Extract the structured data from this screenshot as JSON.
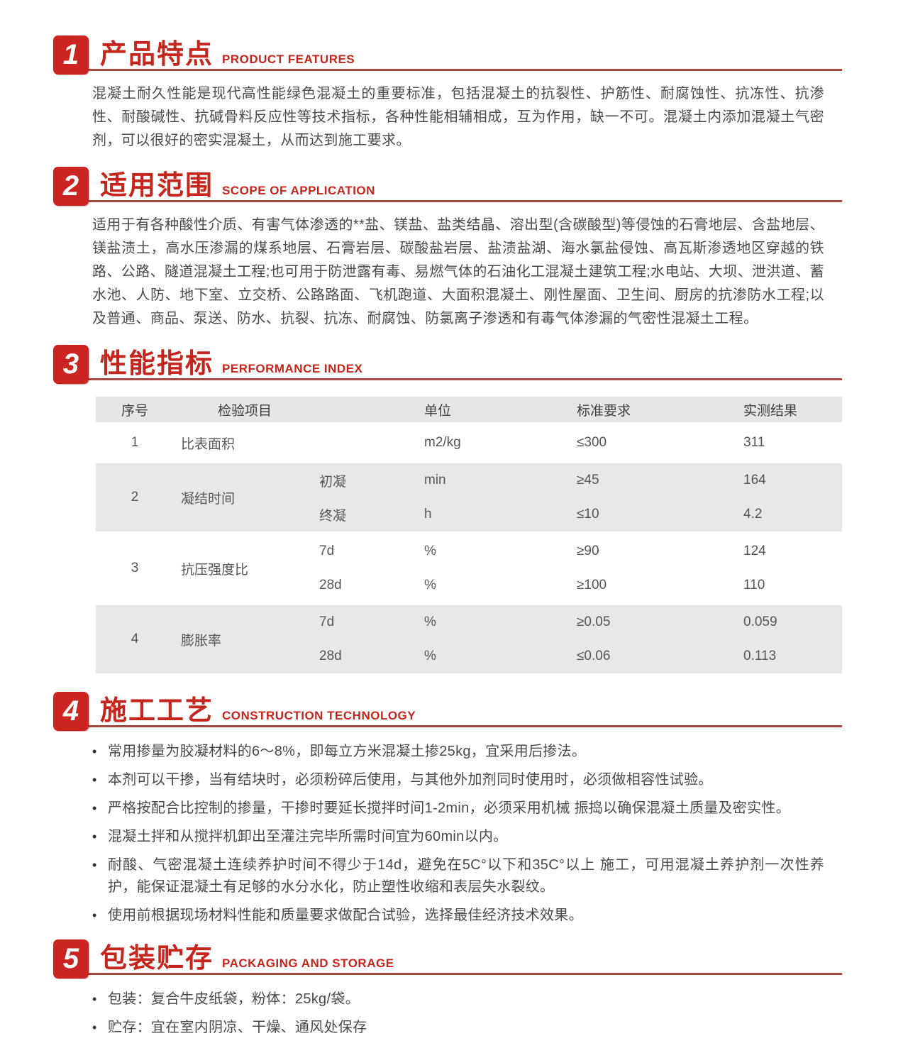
{
  "theme": {
    "accent_color": "#cc2420",
    "title_color": "#c4251c",
    "rule_color": "#a8473f",
    "table_shade_color": "#e8e8e8"
  },
  "sections": [
    {
      "number": "1",
      "title": "产品特点",
      "subtitle": "PRODUCT FEATURES",
      "paragraph": "混凝土耐久性能是现代高性能绿色混凝土的重要标准，包括混凝土的抗裂性、护筋性、耐腐蚀性、抗冻性、抗渗性、耐酸碱性、抗碱骨料反应性等技术指标，各种性能相辅相成，互为作用，缺一不可。混凝土内添加混凝土气密剂，可以很好的密实混凝土，从而达到施工要求。"
    },
    {
      "number": "2",
      "title": "适用范围",
      "subtitle": "SCOPE OF APPLICATION",
      "paragraph": "适用于有各种酸性介质、有害气体渗透的**盐、镁盐、盐类结晶、溶出型(含碳酸型)等侵蚀的石膏地层、含盐地层、镁盐渍土，高水压渗漏的煤系地层、石膏岩层、碳酸盐岩层、盐渍盐湖、海水氯盐侵蚀、高瓦斯渗透地区穿越的铁路、公路、隧道混凝土工程;也可用于防泄露有毒、易燃气体的石油化工混凝土建筑工程;水电站、大坝、泄洪道、蓄水池、人防、地下室、立交桥、公路路面、飞机跑道、大面积混凝土、刚性屋面、卫生间、厨房的抗渗防水工程;以及普通、商品、泵送、防水、抗裂、抗冻、耐腐蚀、防氯离子渗透和有毒气体渗漏的气密性混凝土工程。"
    },
    {
      "number": "3",
      "title": "性能指标",
      "subtitle": "PERFORMANCE INDEX",
      "table": {
        "headers": [
          "序号",
          "检验项目",
          "单位",
          "标准要求",
          "实测结果"
        ],
        "rows": [
          {
            "no": "1",
            "item": "比表面积",
            "unit": "m2/kg",
            "standard": "≤300",
            "result": "311"
          },
          {
            "no": "2",
            "item": "凝结时间",
            "subs": [
              {
                "name": "初凝",
                "unit": "min",
                "standard": "≥45",
                "result": "164"
              },
              {
                "name": "终凝",
                "unit": "h",
                "standard": "≤10",
                "result": "4.2"
              }
            ]
          },
          {
            "no": "3",
            "item": "抗压强度比",
            "subs": [
              {
                "name": "7d",
                "unit": "%",
                "standard": "≥90",
                "result": "124"
              },
              {
                "name": "28d",
                "unit": "%",
                "standard": "≥100",
                "result": "110"
              }
            ]
          },
          {
            "no": "4",
            "item": "膨胀率",
            "subs": [
              {
                "name": "7d",
                "unit": "%",
                "standard": "≥0.05",
                "result": "0.059"
              },
              {
                "name": "28d",
                "unit": "%",
                "standard": "≤0.06",
                "result": "0.113"
              }
            ]
          }
        ]
      }
    },
    {
      "number": "4",
      "title": "施工工艺",
      "subtitle": "CONSTRUCTION TECHNOLOGY",
      "bullets": [
        "常用掺量为胶凝材料的6～8%，即每立方米混凝土掺25kg，宜采用后掺法。",
        "本剂可以干掺，当有结块时，必须粉碎后使用，与其他外加剂同时使用时，必须做相容性试验。",
        "严格按配合比控制的掺量，干掺时要延长搅拌时间1-2min，必须采用机械 振捣以确保混凝土质量及密实性。",
        "混凝土拌和从搅拌机卸出至灌注完毕所需时间宜为60min以内。",
        "耐酸、气密混凝土连续养护时间不得少于14d，避免在5C°以下和35C°以上 施工，可用混凝土养护剂一次性养护，能保证混凝土有足够的水分水化，防止塑性收缩和表层失水裂纹。",
        "使用前根据现场材料性能和质量要求做配合试验，选择最佳经济技术效果。"
      ]
    },
    {
      "number": "5",
      "title": "包装贮存",
      "subtitle": "PACKAGING AND STORAGE",
      "bullets": [
        "包装：复合牛皮纸袋，粉体：25kg/袋。",
        "贮存：宜在室内阴凉、干燥、通风处保存"
      ]
    }
  ]
}
